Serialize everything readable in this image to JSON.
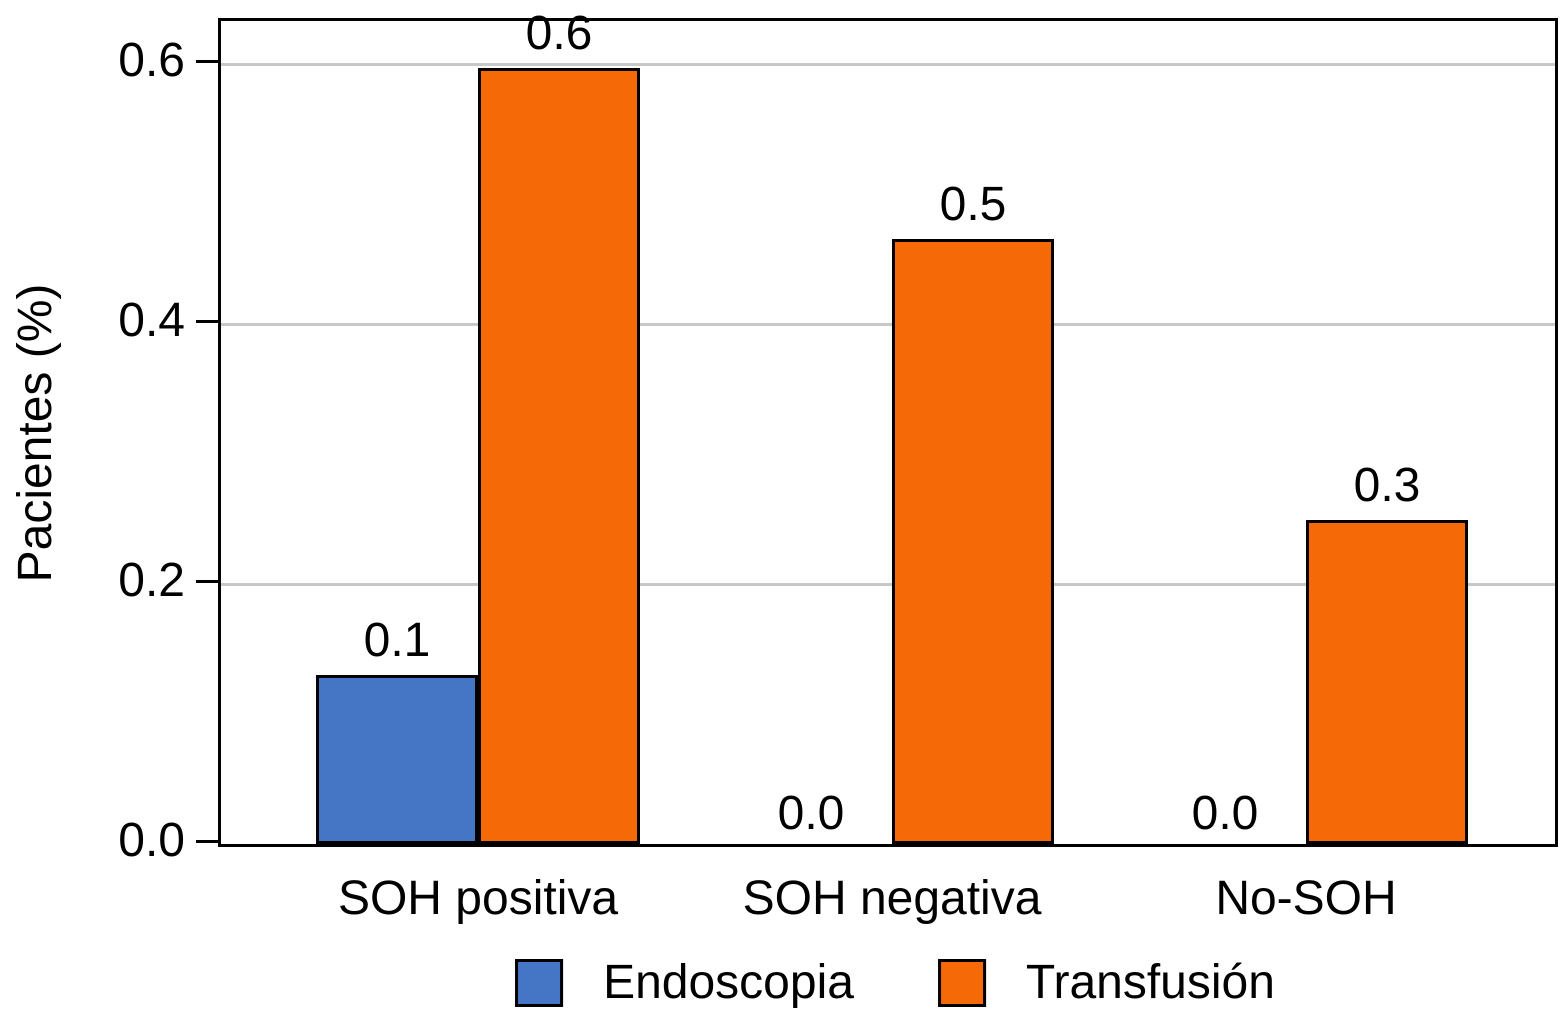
{
  "chart_data": {
    "type": "bar",
    "title": "",
    "xlabel": "",
    "ylabel": "Pacientes (%)",
    "categories": [
      "SOH positiva",
      "SOH negativa",
      "No-SOH"
    ],
    "series": [
      {
        "name": "Endoscopia",
        "color": "#4576C5",
        "values": [
          0.1,
          0.0,
          0.0
        ],
        "value_labels": [
          "0.1",
          "0.0",
          "0.0"
        ],
        "plotted_heights": [
          0.13,
          0.0,
          0.0
        ]
      },
      {
        "name": "Transfusión",
        "color": "#F56A07",
        "values": [
          0.6,
          0.5,
          0.3
        ],
        "value_labels": [
          "0.6",
          "0.5",
          "0.3"
        ],
        "plotted_heights": [
          0.597,
          0.465,
          0.249
        ]
      }
    ],
    "y_ticks": [
      0.0,
      0.2,
      0.4,
      0.6
    ],
    "y_tick_labels": [
      "0.0",
      "0.2",
      "0.4",
      "0.6"
    ],
    "ylim": [
      0,
      0.633
    ],
    "grid": "horizontal",
    "legend_position": "bottom",
    "colors": {
      "grid": "#C8C8C8",
      "axis": "#000000",
      "background": "#FFFFFF"
    }
  }
}
